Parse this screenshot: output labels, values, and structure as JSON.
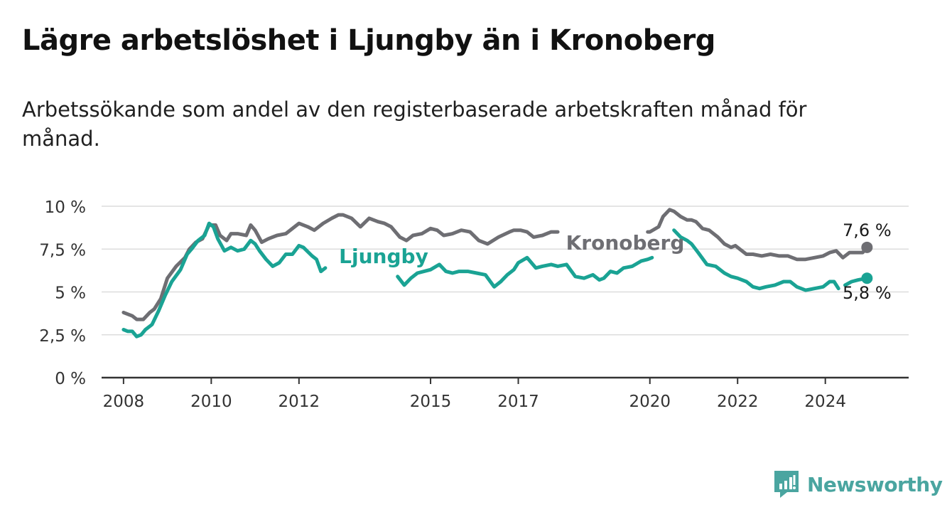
{
  "header": {
    "title": "Lägre arbetslöshet i Ljungby än i Kronoberg",
    "subtitle": "Arbetssökande som andel av den registerbaserade arbetskraften månad för månad."
  },
  "brand": {
    "name": "Newsworthy",
    "icon": "newsworthy-logo-icon",
    "color": "#4aa5a0"
  },
  "chart_data": {
    "type": "line",
    "title": "Lägre arbetslöshet i Ljungby än i Kronoberg",
    "subtitle": "Arbetssökande som andel av den registerbaserade arbetskraften månad för månad.",
    "xlabel": "",
    "ylabel": "",
    "xlim": [
      2007.5,
      2025.9
    ],
    "ylim": [
      0,
      10
    ],
    "y_ticks": [
      0,
      2.5,
      5,
      7.5,
      10
    ],
    "y_tick_labels": [
      "0 %",
      "2,5 %",
      "5 %",
      "7,5 %",
      "10 %"
    ],
    "x_ticks": [
      2008,
      2010,
      2012,
      2015,
      2017,
      2020,
      2022,
      2024
    ],
    "x_tick_labels": [
      "2008",
      "2010",
      "2012",
      "2015",
      "2017",
      "2020",
      "2022",
      "2024"
    ],
    "grid": "horizontal",
    "legend": "inline labels",
    "end_labels": [
      "7,6 %",
      "5,8 %"
    ],
    "series": [
      {
        "name": "Kronoberg",
        "color": "#6e6e73",
        "x": [
          2008.0,
          2008.1,
          2008.2,
          2008.3,
          2008.45,
          2008.6,
          2008.7,
          2008.85,
          2009.0,
          2009.2,
          2009.4,
          2009.5,
          2009.65,
          2009.8,
          2009.95,
          2010.1,
          2010.2,
          2010.35,
          2010.45,
          2010.6,
          2010.8,
          2010.9,
          2011.0,
          2011.15,
          2011.3,
          2011.5,
          2011.7,
          2011.9,
          2012.0,
          2012.2,
          2012.35,
          2012.55,
          2012.75,
          2012.9,
          2013.0,
          2013.2,
          2013.4,
          2013.6,
          2013.8,
          2013.95,
          2014.1,
          2014.3,
          2014.45,
          2014.6,
          2014.8,
          2015.0,
          2015.15,
          2015.3,
          2015.5,
          2015.7,
          2015.9,
          2016.1,
          2016.3,
          2016.55,
          2016.8,
          2016.9,
          2017.05,
          2017.2,
          2017.35,
          2017.55,
          2017.75,
          2017.9,
          null,
          2019.95,
          2020.0,
          2020.2,
          2020.3,
          2020.45,
          2020.55,
          2020.7,
          2020.85,
          2020.95,
          2021.05,
          2021.2,
          2021.35,
          2021.55,
          2021.7,
          2021.85,
          2021.95,
          2022.05,
          2022.2,
          2022.35,
          2022.55,
          2022.75,
          2022.95,
          2023.15,
          2023.35,
          2023.55,
          2023.75,
          2023.95,
          2024.1,
          2024.25,
          2024.4,
          2024.55,
          2024.7,
          2024.85,
          2024.95
        ],
        "y": [
          3.8,
          3.7,
          3.6,
          3.4,
          3.4,
          3.8,
          4.0,
          4.6,
          5.8,
          6.5,
          7.0,
          7.5,
          7.9,
          8.1,
          8.9,
          8.9,
          8.3,
          8.0,
          8.4,
          8.4,
          8.3,
          8.9,
          8.6,
          7.9,
          8.1,
          8.3,
          8.4,
          8.8,
          9.0,
          8.8,
          8.6,
          9.0,
          9.3,
          9.5,
          9.5,
          9.3,
          8.8,
          9.3,
          9.1,
          9.0,
          8.8,
          8.2,
          8.0,
          8.3,
          8.4,
          8.7,
          8.6,
          8.3,
          8.4,
          8.6,
          8.5,
          8.0,
          7.8,
          8.2,
          8.5,
          8.6,
          8.6,
          8.5,
          8.2,
          8.3,
          8.5,
          8.5,
          null,
          8.5,
          8.5,
          8.8,
          9.4,
          9.8,
          9.7,
          9.4,
          9.2,
          9.2,
          9.1,
          8.7,
          8.6,
          8.2,
          7.8,
          7.6,
          7.7,
          7.5,
          7.2,
          7.2,
          7.1,
          7.2,
          7.1,
          7.1,
          6.9,
          6.9,
          7.0,
          7.1,
          7.3,
          7.4,
          7.0,
          7.3,
          7.3,
          7.3,
          7.6
        ]
      },
      {
        "name": "Ljungby",
        "color": "#1aa394",
        "x": [
          2008.0,
          2008.1,
          2008.2,
          2008.3,
          2008.4,
          2008.5,
          2008.65,
          2008.8,
          2008.95,
          2009.1,
          2009.3,
          2009.45,
          2009.55,
          2009.7,
          2009.85,
          2009.95,
          2010.05,
          2010.15,
          2010.3,
          2010.45,
          2010.6,
          2010.75,
          2010.9,
          2011.0,
          2011.1,
          2011.25,
          2011.4,
          2011.55,
          2011.7,
          2011.85,
          2012.0,
          2012.1,
          2012.3,
          2012.4,
          2012.5,
          2012.6,
          null,
          2014.25,
          2014.4,
          2014.55,
          2014.7,
          2014.85,
          2015.0,
          2015.2,
          2015.35,
          2015.5,
          2015.65,
          2015.85,
          2016.05,
          2016.25,
          2016.45,
          2016.6,
          2016.75,
          2016.9,
          2017.0,
          2017.2,
          2017.4,
          2017.55,
          2017.75,
          2017.9,
          2018.1,
          2018.3,
          2018.5,
          2018.7,
          2018.85,
          2018.95,
          2019.1,
          2019.25,
          2019.4,
          2019.6,
          2019.8,
          2019.95,
          2020.05,
          null,
          2020.55,
          2020.7,
          2020.85,
          2020.95,
          2021.1,
          2021.3,
          2021.5,
          2021.7,
          2021.85,
          2022.0,
          2022.2,
          2022.35,
          2022.5,
          2022.65,
          2022.85,
          2023.05,
          2023.2,
          2023.35,
          2023.55,
          2023.75,
          2023.95,
          2024.1,
          2024.2,
          2024.3,
          null,
          2024.45,
          2024.6,
          2024.75,
          2024.95
        ],
        "y": [
          2.8,
          2.7,
          2.7,
          2.4,
          2.5,
          2.8,
          3.1,
          3.9,
          4.8,
          5.6,
          6.3,
          7.2,
          7.5,
          8.0,
          8.3,
          9.0,
          8.8,
          8.1,
          7.4,
          7.6,
          7.4,
          7.5,
          8.0,
          7.8,
          7.4,
          6.9,
          6.5,
          6.7,
          7.2,
          7.2,
          7.7,
          7.6,
          7.1,
          6.9,
          6.2,
          6.4,
          null,
          5.9,
          5.4,
          5.8,
          6.1,
          6.2,
          6.3,
          6.6,
          6.2,
          6.1,
          6.2,
          6.2,
          6.1,
          6.0,
          5.3,
          5.6,
          6.0,
          6.3,
          6.7,
          7.0,
          6.4,
          6.5,
          6.6,
          6.5,
          6.6,
          5.9,
          5.8,
          6.0,
          5.7,
          5.8,
          6.2,
          6.1,
          6.4,
          6.5,
          6.8,
          6.9,
          7.0,
          null,
          8.6,
          8.2,
          8.0,
          7.8,
          7.3,
          6.6,
          6.5,
          6.1,
          5.9,
          5.8,
          5.6,
          5.3,
          5.2,
          5.3,
          5.4,
          5.6,
          5.6,
          5.3,
          5.1,
          5.2,
          5.3,
          5.6,
          5.6,
          5.2,
          null,
          5.4,
          5.6,
          5.7,
          5.8
        ]
      }
    ]
  }
}
